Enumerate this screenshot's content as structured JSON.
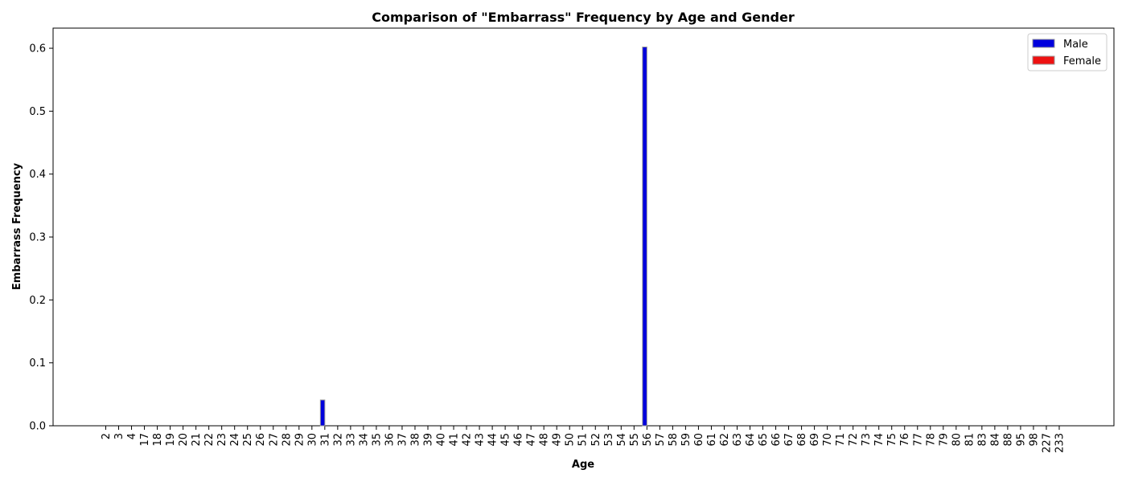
{
  "chart_data": {
    "type": "bar",
    "title": "Comparison of \"Embarrass\" Frequency by Age and Gender",
    "xlabel": "Age",
    "ylabel": "Embarrass Frequency",
    "ylim": [
      0,
      0.632
    ],
    "yticks": [
      "0.0",
      "0.1",
      "0.2",
      "0.3",
      "0.4",
      "0.5",
      "0.6"
    ],
    "ytick_values": [
      0,
      0.1,
      0.2,
      0.3,
      0.4,
      0.5,
      0.6
    ],
    "categories": [
      "2",
      "3",
      "4",
      "17",
      "18",
      "19",
      "20",
      "21",
      "22",
      "23",
      "24",
      "25",
      "26",
      "27",
      "28",
      "29",
      "30",
      "31",
      "32",
      "33",
      "34",
      "35",
      "36",
      "37",
      "38",
      "39",
      "40",
      "41",
      "42",
      "43",
      "44",
      "45",
      "46",
      "47",
      "48",
      "49",
      "50",
      "51",
      "52",
      "53",
      "54",
      "55",
      "56",
      "57",
      "58",
      "59",
      "60",
      "61",
      "62",
      "63",
      "64",
      "65",
      "66",
      "67",
      "68",
      "69",
      "70",
      "71",
      "72",
      "73",
      "74",
      "75",
      "76",
      "77",
      "78",
      "79",
      "80",
      "81",
      "83",
      "84",
      "88",
      "95",
      "98",
      "227",
      "233"
    ],
    "series": [
      {
        "name": "Male",
        "color": "#0000dd",
        "values": [
          0,
          0,
          0,
          0,
          0,
          0,
          0,
          0,
          0,
          0,
          0,
          0,
          0,
          0,
          0,
          0,
          0,
          0.041,
          0,
          0,
          0,
          0,
          0,
          0,
          0,
          0,
          0,
          0,
          0,
          0,
          0,
          0,
          0,
          0,
          0,
          0,
          0,
          0,
          0,
          0,
          0,
          0,
          0.602,
          0,
          0,
          0,
          0,
          0,
          0,
          0,
          0,
          0,
          0,
          0,
          0,
          0,
          0,
          0,
          0,
          0,
          0,
          0,
          0,
          0,
          0,
          0,
          0,
          0,
          0,
          0,
          0,
          0,
          0,
          0,
          0
        ]
      },
      {
        "name": "Female",
        "color": "#ee1111",
        "values": [
          0,
          0,
          0,
          0,
          0,
          0,
          0,
          0,
          0,
          0,
          0,
          0,
          0,
          0,
          0,
          0,
          0,
          0,
          0,
          0,
          0,
          0,
          0,
          0,
          0,
          0,
          0,
          0,
          0,
          0,
          0,
          0,
          0,
          0,
          0,
          0,
          0,
          0,
          0,
          0,
          0,
          0,
          0,
          0,
          0,
          0,
          0,
          0,
          0,
          0,
          0,
          0,
          0,
          0,
          0,
          0,
          0,
          0,
          0,
          0,
          0,
          0,
          0,
          0,
          0,
          0,
          0,
          0,
          0,
          0,
          0,
          0,
          0,
          0,
          0
        ]
      }
    ],
    "legend_position": "top-right",
    "grid": false
  }
}
